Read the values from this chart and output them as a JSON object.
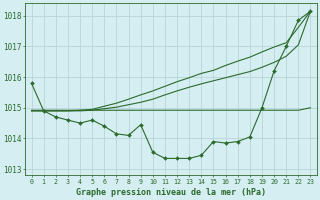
{
  "xlabel": "Graphe pression niveau de la mer (hPa)",
  "background_color": "#d4eef2",
  "grid_color": "#b8d4d8",
  "line_color": "#2d6a2d",
  "ylim": [
    1012.8,
    1018.4
  ],
  "xlim": [
    -0.5,
    23.5
  ],
  "yticks": [
    1013,
    1014,
    1015,
    1016,
    1017,
    1018
  ],
  "xticks": [
    0,
    1,
    2,
    3,
    4,
    5,
    6,
    7,
    8,
    9,
    10,
    11,
    12,
    13,
    14,
    15,
    16,
    17,
    18,
    19,
    20,
    21,
    22,
    23
  ],
  "series": {
    "main": [
      1015.8,
      1014.9,
      1014.7,
      1014.6,
      1014.5,
      1014.6,
      1014.4,
      1014.15,
      1014.1,
      1014.45,
      1013.55,
      1013.35,
      1013.35,
      1013.35,
      1013.45,
      1013.9,
      1013.85,
      1013.9,
      1014.05,
      1015.0,
      1016.2,
      1017.0,
      1017.85,
      1018.15
    ],
    "flat": [
      1014.92,
      1014.92,
      1014.92,
      1014.92,
      1014.92,
      1014.92,
      1014.92,
      1014.92,
      1014.92,
      1014.92,
      1014.92,
      1014.92,
      1014.92,
      1014.92,
      1014.92,
      1014.92,
      1014.92,
      1014.92,
      1014.92,
      1014.92,
      1014.92,
      1014.92,
      1014.92,
      1015.0
    ],
    "rising1": [
      1014.9,
      1014.9,
      1014.9,
      1014.9,
      1014.92,
      1014.95,
      1015.05,
      1015.15,
      1015.28,
      1015.42,
      1015.55,
      1015.7,
      1015.85,
      1015.98,
      1016.12,
      1016.22,
      1016.38,
      1016.52,
      1016.65,
      1016.82,
      1016.98,
      1017.12,
      1017.62,
      1018.15
    ],
    "rising2": [
      1014.9,
      1014.9,
      1014.9,
      1014.9,
      1014.9,
      1014.92,
      1014.97,
      1015.02,
      1015.1,
      1015.18,
      1015.28,
      1015.42,
      1015.55,
      1015.67,
      1015.78,
      1015.88,
      1015.98,
      1016.08,
      1016.18,
      1016.32,
      1016.48,
      1016.68,
      1017.05,
      1018.15
    ]
  }
}
